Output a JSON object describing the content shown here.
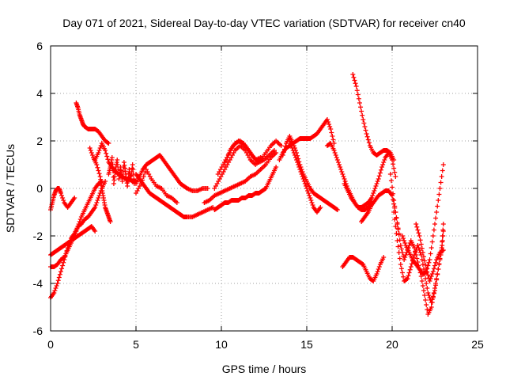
{
  "chart_data": {
    "type": "scatter",
    "title": "Day 071 of 2021, Sidereal Day-to-day VTEC variation (SDTVAR) for receiver cn40",
    "xlabel": "GPS time / hours",
    "ylabel": "SDTVAR / TECUs",
    "xlim": [
      0,
      25
    ],
    "ylim": [
      -6,
      6
    ],
    "xticks": [
      0,
      5,
      10,
      15,
      20,
      25
    ],
    "yticks": [
      -6,
      -4,
      -2,
      0,
      2,
      4,
      6
    ],
    "xtick_labels": [
      "0",
      "5",
      "10",
      "15",
      "20",
      "25"
    ],
    "ytick_labels": [
      "-6",
      "-4",
      "-2",
      "0",
      "2",
      "4",
      "6"
    ],
    "grid": true,
    "marker": "plus",
    "color": "#ff0000",
    "series": [
      {
        "x": [
          0.0,
          0.2,
          0.4,
          0.6,
          0.8,
          1.0,
          1.2,
          1.4,
          1.6,
          1.8,
          2.0,
          2.2,
          2.4,
          2.6,
          2.8,
          3.0,
          3.2
        ],
        "y": [
          -4.6,
          -4.4,
          -4.0,
          -3.5,
          -3.0,
          -2.5,
          -2.1,
          -1.9,
          -1.6,
          -1.5,
          -1.3,
          -1.2,
          -1.0,
          -0.8,
          -0.4,
          0.0,
          0.3
        ]
      },
      {
        "x": [
          0.0,
          0.2,
          0.4,
          0.6,
          0.8,
          1.0,
          1.2,
          1.4,
          1.6,
          1.8,
          2.0,
          2.2,
          2.4,
          2.6,
          2.8,
          3.0
        ],
        "y": [
          -3.3,
          -3.3,
          -3.2,
          -3.0,
          -2.9,
          -2.6,
          -2.3,
          -2.0,
          -1.6,
          -1.2,
          -0.9,
          -0.6,
          -0.3,
          0.0,
          0.2,
          0.3
        ]
      },
      {
        "x": [
          0.0,
          0.2,
          0.4,
          0.6,
          0.8,
          1.0,
          1.2,
          1.4,
          1.6,
          1.8,
          2.0,
          2.2,
          2.4,
          2.6
        ],
        "y": [
          -2.8,
          -2.7,
          -2.6,
          -2.5,
          -2.4,
          -2.3,
          -2.2,
          -2.1,
          -2.0,
          -1.9,
          -1.8,
          -1.7,
          -1.6,
          -1.8
        ]
      },
      {
        "x": [
          0.0,
          0.1,
          0.2,
          0.3,
          0.4,
          0.5,
          0.6,
          0.8,
          1.0,
          1.2,
          1.4
        ],
        "y": [
          -0.9,
          -0.6,
          -0.3,
          -0.1,
          0.0,
          0.0,
          -0.2,
          -0.6,
          -0.8,
          -0.6,
          -0.4
        ]
      },
      {
        "x": [
          1.5,
          1.6,
          1.7,
          1.8,
          1.9,
          2.0,
          2.2,
          2.4,
          2.6,
          2.8,
          3.0,
          3.2,
          3.4
        ],
        "y": [
          3.6,
          3.4,
          3.1,
          2.9,
          2.7,
          2.6,
          2.5,
          2.5,
          2.5,
          2.4,
          2.2,
          2.0,
          1.9
        ]
      },
      {
        "x": [
          2.3,
          2.5,
          2.7,
          2.9,
          3.0,
          3.1,
          3.2,
          3.3,
          3.4,
          3.5
        ],
        "y": [
          1.7,
          1.3,
          1.0,
          0.5,
          0.0,
          -0.4,
          -0.8,
          -1.0,
          -1.2,
          -1.4
        ]
      },
      {
        "x": [
          2.6,
          2.8,
          3.0,
          3.2,
          3.4,
          3.6,
          3.8,
          4.0,
          4.2,
          4.4,
          4.6,
          4.8,
          5.0
        ],
        "y": [
          1.2,
          1.5,
          1.9,
          1.6,
          1.1,
          0.9,
          0.7,
          0.6,
          0.5,
          0.4,
          0.4,
          0.3,
          0.3
        ]
      },
      {
        "x": [
          3.4,
          3.5,
          3.6,
          3.7,
          3.8,
          3.9,
          4.0,
          4.1,
          4.2,
          4.3,
          4.4,
          4.5,
          4.6,
          4.7,
          4.8,
          4.9
        ],
        "y": [
          0.6,
          0.9,
          1.3,
          0.2,
          0.8,
          1.2,
          0.4,
          0.9,
          0.3,
          1.1,
          0.6,
          0.1,
          0.8,
          0.4,
          1.0,
          0.2
        ]
      },
      {
        "x": [
          5.0,
          5.2,
          5.4,
          5.6,
          5.8,
          6.0,
          6.2,
          6.4,
          6.6,
          6.8,
          7.0,
          7.2,
          7.4,
          7.6,
          7.8,
          8.0,
          8.3,
          8.6,
          8.9,
          9.2
        ],
        "y": [
          0.2,
          0.5,
          0.8,
          1.0,
          1.1,
          1.2,
          1.3,
          1.4,
          1.2,
          1.0,
          0.8,
          0.6,
          0.4,
          0.2,
          0.1,
          0.0,
          -0.1,
          -0.1,
          0.0,
          0.0
        ]
      },
      {
        "x": [
          5.0,
          5.2,
          5.4,
          5.6,
          5.8,
          6.0,
          6.2,
          6.4,
          6.6,
          6.8,
          7.0,
          7.2,
          7.4,
          7.6,
          7.8,
          8.0,
          8.3,
          8.6,
          8.9,
          9.2,
          9.5
        ],
        "y": [
          0.6,
          0.4,
          0.2,
          0.0,
          -0.2,
          -0.3,
          -0.4,
          -0.5,
          -0.6,
          -0.7,
          -0.8,
          -0.9,
          -1.0,
          -1.1,
          -1.2,
          -1.2,
          -1.2,
          -1.1,
          -1.0,
          -0.9,
          -0.8
        ]
      },
      {
        "x": [
          5.0,
          5.3,
          5.6,
          5.9,
          6.2,
          6.5,
          6.8,
          7.1,
          7.4
        ],
        "y": [
          -0.2,
          0.2,
          0.8,
          0.4,
          0.1,
          0.0,
          -0.3,
          -0.4,
          -0.6
        ]
      },
      {
        "x": [
          9.6,
          9.8,
          10.0,
          10.2,
          10.4,
          10.6,
          10.8,
          11.0,
          11.2,
          11.4,
          11.6,
          11.8,
          12.0,
          12.2,
          12.4,
          12.6,
          12.8,
          13.0,
          13.2
        ],
        "y": [
          -0.9,
          -0.8,
          -0.7,
          -0.6,
          -0.6,
          -0.5,
          -0.5,
          -0.5,
          -0.4,
          -0.4,
          -0.3,
          -0.3,
          -0.2,
          -0.2,
          -0.1,
          0.0,
          0.3,
          0.6,
          0.9
        ]
      },
      {
        "x": [
          9.0,
          9.3,
          9.6,
          9.9,
          10.2,
          10.5,
          10.8,
          11.1,
          11.4,
          11.7,
          12.0,
          12.3,
          12.6,
          12.9,
          13.2
        ],
        "y": [
          -0.6,
          -0.5,
          -0.3,
          -0.2,
          -0.1,
          0.0,
          0.1,
          0.2,
          0.3,
          0.5,
          0.6,
          0.8,
          1.0,
          1.3,
          1.5
        ]
      },
      {
        "x": [
          9.6,
          9.9,
          10.2,
          10.5,
          10.8,
          11.1,
          11.4,
          11.7,
          12.0,
          12.3,
          12.6,
          12.9,
          13.2,
          13.5
        ],
        "y": [
          0.0,
          0.4,
          0.8,
          1.2,
          1.6,
          1.8,
          1.6,
          1.2,
          1.0,
          1.2,
          1.5,
          1.8,
          2.0,
          1.8
        ]
      },
      {
        "x": [
          9.8,
          10.1,
          10.4,
          10.7,
          11.0,
          11.3,
          11.6,
          11.9,
          12.2,
          12.5,
          12.8,
          13.1
        ],
        "y": [
          0.6,
          1.0,
          1.4,
          1.8,
          2.0,
          1.9,
          1.6,
          1.3,
          1.1,
          1.2,
          1.4,
          1.6
        ]
      },
      {
        "x": [
          10.2,
          10.5,
          10.8,
          11.1,
          11.4,
          11.7,
          12.0,
          12.3
        ],
        "y": [
          1.0,
          1.6,
          1.9,
          2.0,
          1.8,
          1.5,
          1.2,
          1.3
        ]
      },
      {
        "x": [
          13.4,
          13.6,
          13.8,
          14.0,
          14.2,
          14.4,
          14.6,
          14.8,
          15.0,
          15.2,
          15.4,
          15.6,
          15.8,
          16.0,
          16.2,
          16.4,
          16.6
        ],
        "y": [
          1.2,
          1.5,
          1.7,
          1.8,
          1.9,
          2.0,
          2.1,
          2.1,
          2.1,
          2.1,
          2.2,
          2.3,
          2.5,
          2.7,
          2.9,
          2.5,
          1.9
        ]
      },
      {
        "x": [
          13.6,
          13.8,
          14.0,
          14.2,
          14.4,
          14.6,
          14.8,
          15.0,
          15.2,
          15.4,
          15.6,
          15.8,
          16.0,
          16.2,
          16.4,
          16.6,
          16.8
        ],
        "y": [
          1.4,
          1.9,
          2.2,
          1.9,
          1.5,
          1.0,
          0.6,
          0.3,
          0.0,
          -0.2,
          -0.3,
          -0.4,
          -0.5,
          -0.6,
          -0.7,
          -0.8,
          -0.9
        ]
      },
      {
        "x": [
          14.0,
          14.2,
          14.4,
          14.6,
          14.8,
          15.0,
          15.2,
          15.4,
          15.6,
          15.8
        ],
        "y": [
          2.0,
          1.6,
          1.2,
          0.8,
          0.4,
          0.0,
          -0.4,
          -0.8,
          -1.0,
          -0.8
        ]
      },
      {
        "x": [
          16.2,
          16.4,
          16.6,
          16.8,
          17.0,
          17.2,
          17.4,
          17.6,
          17.8,
          18.0,
          18.2,
          18.4,
          18.6,
          18.8
        ],
        "y": [
          1.8,
          1.9,
          1.6,
          1.2,
          0.8,
          0.4,
          0.0,
          -0.3,
          -0.6,
          -0.8,
          -0.9,
          -0.9,
          -0.8,
          -0.6
        ]
      },
      {
        "x": [
          17.7,
          17.9,
          18.1,
          18.3,
          18.5,
          18.7,
          18.9,
          19.1,
          19.3,
          19.5,
          19.7,
          19.9,
          20.1
        ],
        "y": [
          4.8,
          4.3,
          3.6,
          2.9,
          2.3,
          1.8,
          1.5,
          1.4,
          1.5,
          1.6,
          1.6,
          1.5,
          1.2
        ]
      },
      {
        "x": [
          17.2,
          17.4,
          17.6,
          17.8,
          18.0,
          18.2,
          18.4,
          18.6,
          18.8,
          19.0,
          19.2,
          19.4,
          19.6,
          19.8,
          20.0,
          20.2
        ],
        "y": [
          0.2,
          -0.1,
          -0.4,
          -0.6,
          -0.8,
          -0.8,
          -0.7,
          -0.6,
          -0.4,
          0.0,
          0.4,
          0.9,
          1.3,
          1.5,
          1.2,
          0.5
        ]
      },
      {
        "x": [
          18.2,
          18.4,
          18.6,
          18.8,
          19.0,
          19.2,
          19.4,
          19.6,
          19.8,
          20.0,
          20.2,
          20.4
        ],
        "y": [
          -1.4,
          -1.2,
          -1.0,
          -0.7,
          -0.5,
          -0.3,
          -0.2,
          -0.1,
          -0.1,
          -0.3,
          -1.0,
          -1.9
        ]
      },
      {
        "x": [
          17.1,
          17.3,
          17.5,
          17.7,
          17.9,
          18.1,
          18.3,
          18.5,
          18.7,
          18.9,
          19.1,
          19.3,
          19.5
        ],
        "y": [
          -3.3,
          -3.1,
          -2.9,
          -2.9,
          -3.0,
          -3.1,
          -3.2,
          -3.5,
          -3.8,
          -3.9,
          -3.6,
          -3.2,
          -2.9
        ]
      },
      {
        "x": [
          19.9,
          20.1,
          20.3,
          20.5,
          20.7,
          20.9,
          21.1,
          21.3,
          21.5,
          21.7,
          21.9,
          22.1,
          22.3,
          22.5,
          22.7,
          22.9,
          23.0
        ],
        "y": [
          0.6,
          -0.5,
          -1.5,
          -2.4,
          -3.0,
          -2.6,
          -2.2,
          -2.5,
          -3.1,
          -3.7,
          -4.5,
          -5.3,
          -5.0,
          -4.2,
          -3.4,
          -2.6,
          -1.8
        ]
      },
      {
        "x": [
          20.1,
          20.3,
          20.5,
          20.7,
          20.9,
          21.1,
          21.3,
          21.5,
          21.7,
          21.9,
          22.1,
          22.3,
          22.5,
          22.7,
          22.9,
          23.0
        ],
        "y": [
          -1.0,
          -2.2,
          -3.2,
          -3.9,
          -3.8,
          -3.3,
          -2.8,
          -2.4,
          -2.8,
          -3.6,
          -4.4,
          -4.8,
          -4.3,
          -3.4,
          -2.5,
          -1.5
        ]
      },
      {
        "x": [
          20.6,
          20.8,
          21.0,
          21.2,
          21.4,
          21.6,
          21.8,
          22.0,
          22.2,
          22.4,
          22.6,
          22.8,
          23.0
        ],
        "y": [
          -2.0,
          -2.4,
          -2.7,
          -3.0,
          -3.2,
          -3.4,
          -3.6,
          -3.5,
          -3.0,
          -2.0,
          -1.0,
          0.0,
          1.0
        ]
      },
      {
        "x": [
          21.4,
          21.6,
          21.8,
          22.0,
          22.2,
          22.4,
          22.6,
          22.8,
          23.0
        ],
        "y": [
          -1.5,
          -2.0,
          -2.7,
          -3.4,
          -3.9,
          -3.5,
          -3.0,
          -2.7,
          -2.6
        ]
      }
    ]
  }
}
